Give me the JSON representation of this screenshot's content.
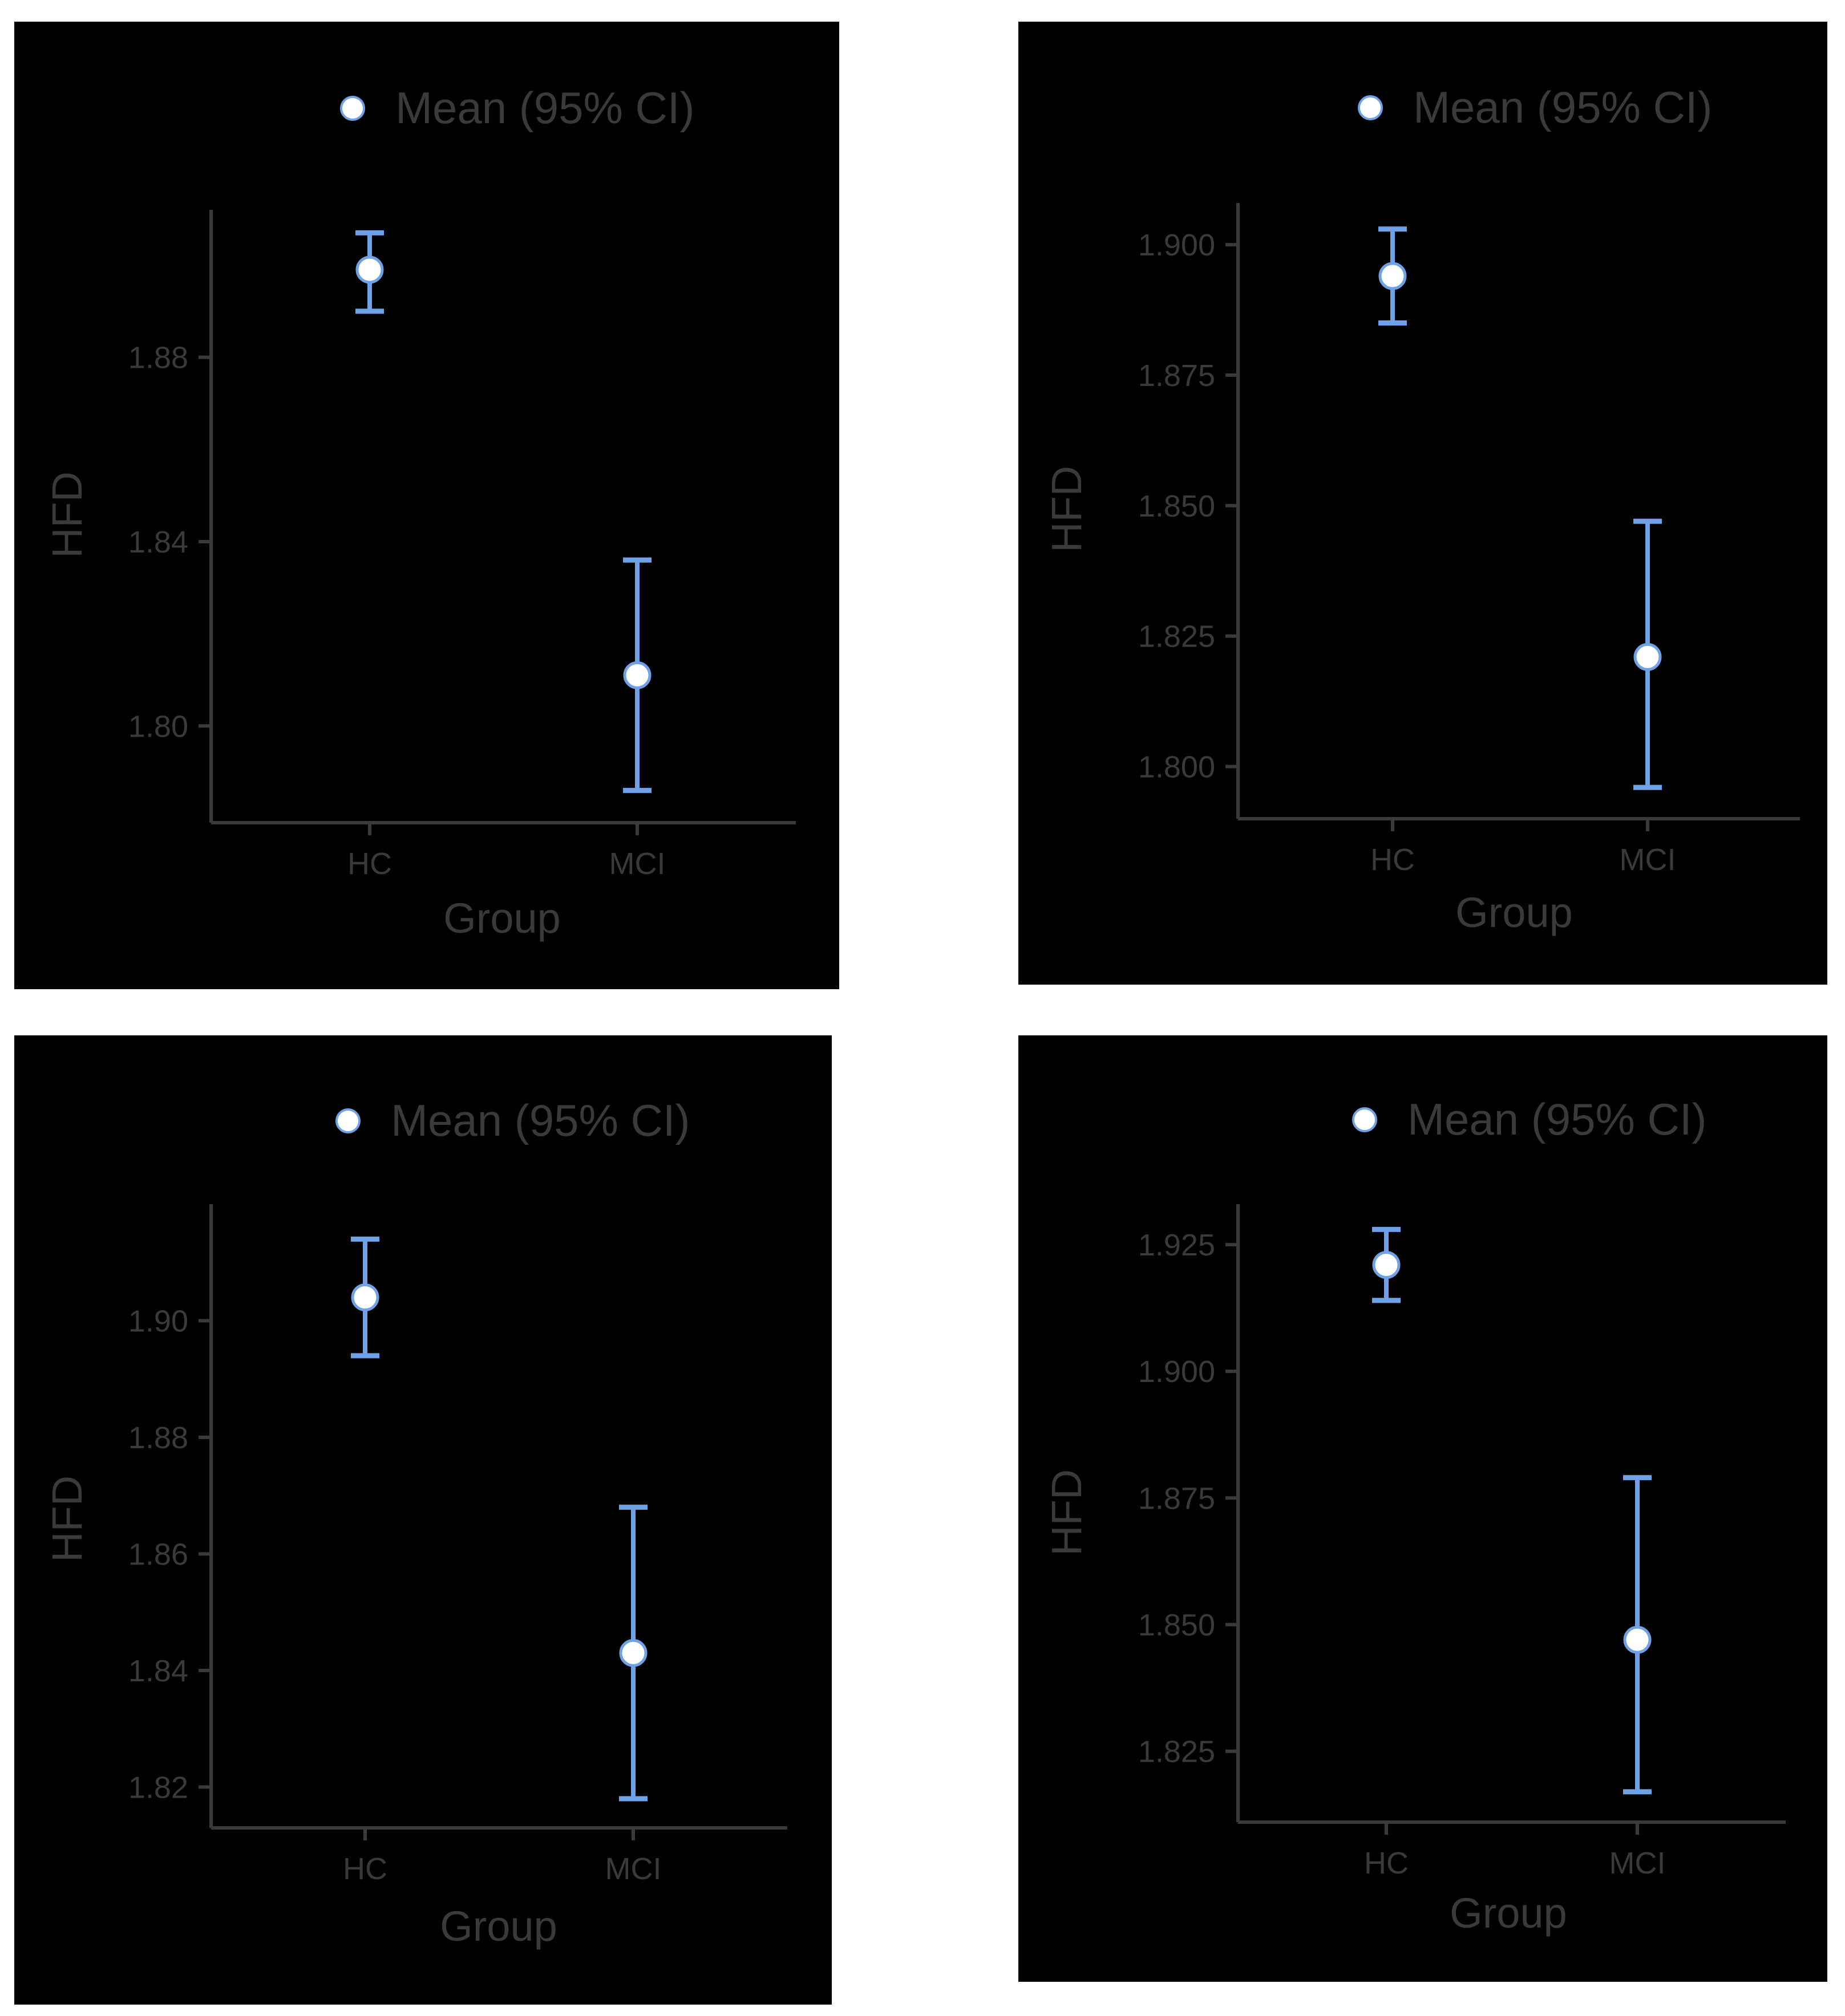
{
  "colors": {
    "background": "#000000",
    "text": "#3a3a3a",
    "axis": "#3a3a3a",
    "errorbar": "#6fa1e6",
    "marker": "#ffffff"
  },
  "chart_data": [
    {
      "type": "scatter",
      "legend": {
        "label": "Mean (95% CI)",
        "position": "top"
      },
      "xlabel": "Group",
      "ylabel": "HFD",
      "categories": [
        "HC",
        "MCI"
      ],
      "yticks": [
        "1.80",
        "1.84",
        "1.88"
      ],
      "ylim": [
        1.779,
        1.912
      ],
      "grid": false,
      "series": [
        {
          "points": [
            {
              "x": "HC",
              "mean": 1.899,
              "lower": 1.89,
              "upper": 1.907
            },
            {
              "x": "MCI",
              "mean": 1.811,
              "lower": 1.786,
              "upper": 1.836
            }
          ]
        }
      ]
    },
    {
      "type": "scatter",
      "legend": {
        "label": "Mean (95% CI)",
        "position": "top"
      },
      "xlabel": "Group",
      "ylabel": "HFD",
      "categories": [
        "HC",
        "MCI"
      ],
      "yticks": [
        "1.800",
        "1.825",
        "1.850",
        "1.875",
        "1.900"
      ],
      "ylim": [
        1.79,
        1.908
      ],
      "grid": false,
      "series": [
        {
          "points": [
            {
              "x": "HC",
              "mean": 1.894,
              "lower": 1.885,
              "upper": 1.903
            },
            {
              "x": "MCI",
              "mean": 1.821,
              "lower": 1.796,
              "upper": 1.847
            }
          ]
        }
      ]
    },
    {
      "type": "scatter",
      "legend": {
        "label": "Mean (95% CI)",
        "position": "top"
      },
      "xlabel": "Group",
      "ylabel": "HFD",
      "categories": [
        "HC",
        "MCI"
      ],
      "yticks": [
        "1.82",
        "1.84",
        "1.86",
        "1.88",
        "1.90"
      ],
      "ylim": [
        1.813,
        1.92
      ],
      "grid": false,
      "series": [
        {
          "points": [
            {
              "x": "HC",
              "mean": 1.904,
              "lower": 1.894,
              "upper": 1.914
            },
            {
              "x": "MCI",
              "mean": 1.843,
              "lower": 1.818,
              "upper": 1.868
            }
          ]
        }
      ]
    },
    {
      "type": "scatter",
      "legend": {
        "label": "Mean (95% CI)",
        "position": "top"
      },
      "xlabel": "Group",
      "ylabel": "HFD",
      "categories": [
        "HC",
        "MCI"
      ],
      "yticks": [
        "1.825",
        "1.850",
        "1.875",
        "1.900",
        "1.925"
      ],
      "ylim": [
        1.811,
        1.933
      ],
      "grid": false,
      "series": [
        {
          "points": [
            {
              "x": "HC",
              "mean": 1.921,
              "lower": 1.914,
              "upper": 1.928
            },
            {
              "x": "MCI",
              "mean": 1.847,
              "lower": 1.817,
              "upper": 1.879
            }
          ]
        }
      ]
    }
  ]
}
